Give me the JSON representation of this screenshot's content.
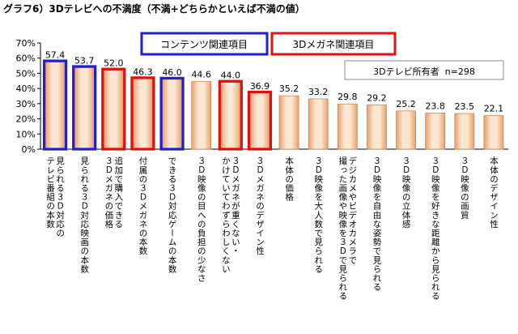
{
  "chart_data": {
    "type": "bar",
    "title": "グラフ6）3Dテレビへの不満度（不満+どちらかといえば不満の値）",
    "ylim": [
      0,
      70
    ],
    "yticks": [
      "0%",
      "10%",
      "20%",
      "30%",
      "40%",
      "50%",
      "60%",
      "70%"
    ],
    "value_unit": "%",
    "grid": false,
    "categories": [
      "見られる3D対応のテレビ番組の本数",
      "見られる3D対応映画の本数",
      "追加で購入できる3Dメガネの価格",
      "付属の3Dメガネの本数",
      "できる3D対応ゲームの本数",
      "3D映像の目への負担の少なさ",
      "3Dメガネが重くない・かけていてわずらわしくない",
      "3Dメガネのデザイン性",
      "本体の価格",
      "3D映像を大人数で見られる",
      "デジカメやビデオカメラで撮った画像や映像を3Dで見られる",
      "3D映像を自由な姿勢で見られる",
      "3D映像の立体感",
      "3D映像を好きな距離から見られる",
      "3D映像の画質",
      "本体のデザイン性"
    ],
    "category_lines": [
      [
        "見られる３Ｄ対応の",
        "テレビ番組の本数"
      ],
      [
        "見られる３Ｄ対応映画の本数"
      ],
      [
        "追加で購入できる",
        "３Ｄメガネの価格"
      ],
      [
        "付属の３Ｄメガネの本数"
      ],
      [
        "できる３Ｄ対応ゲームの本数"
      ],
      [
        "３Ｄ映像の目への負担の少なさ"
      ],
      [
        "３Ｄメガネが重くない・",
        "かけていてわずらわしくない"
      ],
      [
        "３Ｄメガネのデザイン性"
      ],
      [
        "本体の価格"
      ],
      [
        "３Ｄ映像を大人数で見られる"
      ],
      [
        "デジカメやビデオカメラで",
        "撮った画像や映像を３Ｄで見られる"
      ],
      [
        "３Ｄ映像を自由な姿勢で見られる"
      ],
      [
        "３Ｄ映像の立体感"
      ],
      [
        "３Ｄ映像を好きな距離から見られる"
      ],
      [
        "３Ｄ映像の画質"
      ],
      [
        "本体のデザイン性"
      ]
    ],
    "values": [
      57.4,
      53.7,
      52.0,
      46.3,
      46.0,
      44.6,
      44.0,
      36.9,
      35.2,
      33.2,
      29.8,
      29.2,
      25.2,
      23.8,
      23.5,
      22.1
    ],
    "value_labels": [
      "57.4",
      "53.7",
      "52.0",
      "46.3",
      "46.0",
      "44.6",
      "44.0",
      "36.9",
      "35.2",
      "33.2",
      "29.8",
      "29.2",
      "25.2",
      "23.8",
      "23.5",
      "22.1"
    ],
    "highlight_group": [
      "content",
      "content",
      "glasses",
      "glasses",
      "content",
      "none",
      "glasses",
      "glasses",
      "none",
      "none",
      "none",
      "none",
      "none",
      "none",
      "none",
      "none"
    ],
    "legend": [
      {
        "key": "content",
        "label": "コンテンツ関連項目",
        "color": "#1f1fcc"
      },
      {
        "key": "glasses",
        "label": "3Dメガネ関連項目",
        "color": "#dd1111"
      }
    ],
    "note": "3Dテレビ所有者  n=298",
    "colors": {
      "bar_fill_light": "#fbe6d2",
      "bar_fill_dark": "#e9a06b",
      "bar_stroke": "#c98a5a",
      "axis": "#000000",
      "content": "#1f1fcc",
      "glasses": "#dd1111"
    }
  }
}
